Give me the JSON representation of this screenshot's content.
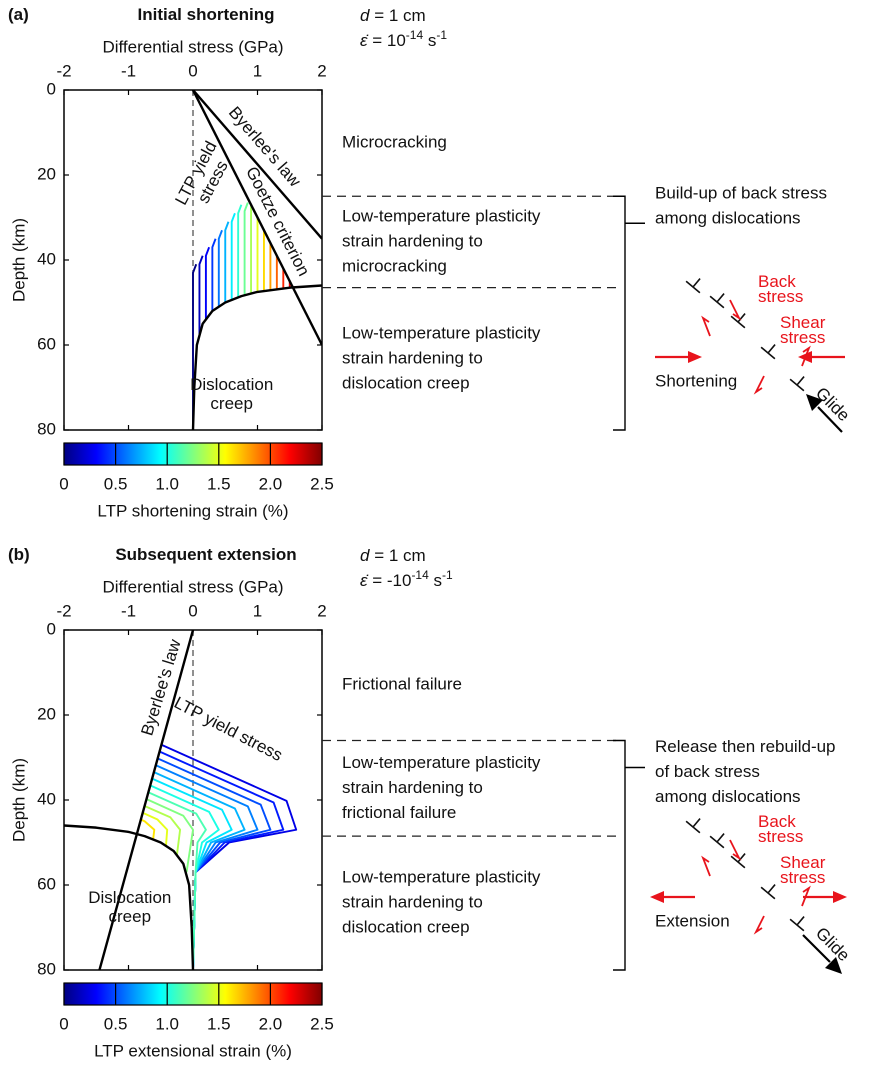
{
  "chart_data": [
    {
      "type": "line",
      "panel_label": "(a)",
      "title": "Initial shortening",
      "grain_size_symbol": "d",
      "grain_size_text": " = 1 cm",
      "strain_rate_symbol": "ε̇",
      "strain_rate_text": " = 10",
      "strain_rate_exponent": "-14",
      "strain_rate_unit": " s",
      "strain_rate_unit_exponent": "-1",
      "x_label": "Differential stress (GPa)",
      "y_label": "Depth (km)",
      "xlim": [
        -2,
        2
      ],
      "xticks": [
        -2,
        -1,
        0,
        1,
        2
      ],
      "ylim": [
        0,
        80
      ],
      "yticks": [
        0,
        20,
        40,
        60,
        80
      ],
      "y_inverted": true,
      "series": [
        {
          "label": [
            "Byerlee's law"
          ],
          "color": "#000000",
          "x": [
            0,
            2
          ],
          "y": [
            0,
            35
          ]
        },
        {
          "label": [
            "Goetze criterion"
          ],
          "color": "#000000",
          "x": [
            0,
            2
          ],
          "y": [
            0,
            60
          ]
        },
        {
          "label": [
            "Dislocation",
            "creep"
          ],
          "color": "#000000",
          "x": [
            0,
            0.02,
            0.06,
            0.15,
            0.3,
            0.5,
            0.75,
            1,
            1.5,
            2
          ],
          "y": [
            80,
            70,
            60,
            55,
            52,
            50,
            48.5,
            47.5,
            46.5,
            46
          ]
        }
      ],
      "annotation": [
        "LTP yield",
        "stress"
      ],
      "ltp_curves": [
        {
          "color": "#000080",
          "x": [
            0,
            0,
            0.05
          ],
          "y": [
            80,
            43,
            41
          ]
        },
        {
          "color": "#0000bd",
          "x": [
            0.1,
            0.1,
            0.15
          ],
          "y": [
            57.5,
            41,
            39
          ]
        },
        {
          "color": "#0000fa",
          "x": [
            0.2,
            0.2,
            0.25
          ],
          "y": [
            53.8,
            39,
            37
          ]
        },
        {
          "color": "#0038ff",
          "x": [
            0.3,
            0.3,
            0.35
          ],
          "y": [
            52,
            37,
            35
          ]
        },
        {
          "color": "#0075ff",
          "x": [
            0.4,
            0.4,
            0.45
          ],
          "y": [
            51,
            35,
            33
          ]
        },
        {
          "color": "#00b3ff",
          "x": [
            0.5,
            0.5,
            0.55
          ],
          "y": [
            50,
            33,
            31
          ]
        },
        {
          "color": "#00f0ff",
          "x": [
            0.6,
            0.6,
            0.65
          ],
          "y": [
            49.4,
            31,
            29
          ]
        },
        {
          "color": "#2effd1",
          "x": [
            0.7,
            0.7,
            0.75
          ],
          "y": [
            48.8,
            29,
            27
          ]
        },
        {
          "color": "#6bff94",
          "x": [
            0.8,
            0.8,
            0.85
          ],
          "y": [
            48.3,
            28.5,
            26.5
          ]
        },
        {
          "color": "#a8ff57",
          "x": [
            0.9,
            0.9
          ],
          "y": [
            47.9,
            27
          ]
        },
        {
          "color": "#e6ff1a",
          "x": [
            1.0,
            1.0
          ],
          "y": [
            47.5,
            30
          ]
        },
        {
          "color": "#ffdb00",
          "x": [
            1.1,
            1.1
          ],
          "y": [
            47.3,
            33
          ]
        },
        {
          "color": "#ff9e00",
          "x": [
            1.2,
            1.2
          ],
          "y": [
            47.1,
            36
          ]
        },
        {
          "color": "#ff6100",
          "x": [
            1.3,
            1.3
          ],
          "y": [
            46.9,
            39
          ]
        },
        {
          "color": "#ff2400",
          "x": [
            1.4,
            1.4
          ],
          "y": [
            46.7,
            42
          ]
        },
        {
          "color": "#e60000",
          "x": [
            1.5,
            1.5
          ],
          "y": [
            46.5,
            45
          ]
        }
      ],
      "colorbar": {
        "label": "LTP shortening strain (%)",
        "lim": [
          0,
          2.5
        ],
        "ticks": [
          0,
          0.5,
          {
            "value": 1,
            "label": "1.0"
          },
          1.5,
          {
            "value": 2,
            "label": "2.0"
          },
          2.5
        ],
        "colormap": [
          "#000080",
          "#0000ff",
          "#0080ff",
          "#00ffff",
          "#80ff80",
          "#ffff00",
          "#ff8000",
          "#ff0000",
          "#800000"
        ]
      },
      "zone_boundaries": [
        25,
        46.5
      ],
      "zones": [
        [
          "Microcracking"
        ],
        [
          "Low-temperature plasticity",
          "strain hardening to",
          "microcracking"
        ],
        [
          "Low-temperature plasticity",
          "strain hardening to",
          "dislocation creep"
        ]
      ],
      "bracket_text": [
        "Build-up of back stress",
        "among dislocations"
      ],
      "schematic": {
        "back_stress": [
          "Back",
          "stress"
        ],
        "shear_stress": [
          "Shear",
          "stress"
        ],
        "loading": "Shortening",
        "glide": "Glide"
      }
    },
    {
      "type": "line",
      "panel_label": "(b)",
      "title": "Subsequent extension",
      "grain_size_symbol": "d",
      "grain_size_text": " = 1 cm",
      "strain_rate_symbol": "ε̇",
      "strain_rate_text": " = -10",
      "strain_rate_exponent": "-14",
      "strain_rate_unit": " s",
      "strain_rate_unit_exponent": "-1",
      "x_label": "Differential stress (GPa)",
      "y_label": "Depth (km)",
      "xlim": [
        -2,
        2
      ],
      "xticks": [
        -2,
        -1,
        0,
        1,
        2
      ],
      "ylim": [
        0,
        80
      ],
      "yticks": [
        0,
        20,
        40,
        60,
        80
      ],
      "y_inverted": true,
      "series": [
        {
          "label": [
            "Byerlee's law"
          ],
          "color": "#000000",
          "x": [
            0,
            -1.45
          ],
          "y": [
            0,
            80
          ]
        },
        {
          "label": [
            "Dislocation",
            "creep"
          ],
          "color": "#000000",
          "x": [
            -2,
            -1.5,
            -1,
            -0.75,
            -0.5,
            -0.3,
            -0.15,
            -0.06,
            -0.02,
            0
          ],
          "y": [
            46,
            46.5,
            47.5,
            48.5,
            50,
            52,
            55,
            60,
            70,
            80
          ]
        }
      ],
      "annotation": [
        "LTP yield stress"
      ],
      "ltp_curves": [
        {
          "color": "#0000e6",
          "x": [
            -0.49,
            1.45,
            1.6,
            0.56,
            0.04,
            0
          ],
          "y": [
            27,
            40.2,
            47,
            50,
            57,
            80
          ]
        },
        {
          "color": "#001aff",
          "x": [
            -0.52,
            1.25,
            1.4,
            0.49,
            0.04,
            0
          ],
          "y": [
            28.6,
            40.6,
            47,
            50,
            57,
            80
          ]
        },
        {
          "color": "#004dff",
          "x": [
            -0.55,
            1.05,
            1.2,
            0.42,
            0.04,
            0
          ],
          "y": [
            30.2,
            41.1,
            47,
            50,
            57,
            80
          ]
        },
        {
          "color": "#0080ff",
          "x": [
            -0.58,
            0.85,
            1.0,
            0.35,
            0.04,
            0
          ],
          "y": [
            31.8,
            41.5,
            47,
            50,
            57,
            80
          ]
        },
        {
          "color": "#00b3ff",
          "x": [
            -0.61,
            0.65,
            0.8,
            0.28,
            0.04,
            0
          ],
          "y": [
            33.4,
            42,
            47,
            50,
            57,
            80
          ]
        },
        {
          "color": "#00e6ff",
          "x": [
            -0.63,
            0.45,
            0.6,
            0.21,
            0.04,
            0
          ],
          "y": [
            35,
            42.3,
            47,
            50,
            57,
            80
          ]
        },
        {
          "color": "#1affe6",
          "x": [
            -0.66,
            0.25,
            0.4,
            0.14,
            0.04,
            0
          ],
          "y": [
            36.6,
            42.8,
            47,
            50,
            57,
            80
          ]
        },
        {
          "color": "#4dffb3",
          "x": [
            -0.69,
            0.05,
            0.2,
            0.07,
            0.04,
            0
          ],
          "y": [
            38.2,
            43.2,
            47,
            50,
            57,
            80
          ]
        },
        {
          "color": "#80ff80",
          "x": [
            -0.72,
            -0.15,
            0,
            -0.1
          ],
          "y": [
            39.8,
            43.7,
            47,
            57
          ]
        },
        {
          "color": "#b3ff4d",
          "x": [
            -0.75,
            -0.35,
            -0.2,
            -0.25
          ],
          "y": [
            41.4,
            44.1,
            47,
            53
          ]
        },
        {
          "color": "#e6ff1a",
          "x": [
            -0.78,
            -0.55,
            -0.4,
            -0.42
          ],
          "y": [
            43,
            44.6,
            47,
            51
          ]
        },
        {
          "color": "#ffe600",
          "x": [
            -0.81,
            -0.75,
            -0.6,
            -0.62
          ],
          "y": [
            44.6,
            45,
            47,
            49.5
          ]
        }
      ],
      "colorbar": {
        "label": "LTP extensional strain (%)",
        "lim": [
          0,
          2.5
        ],
        "ticks": [
          0,
          0.5,
          {
            "value": 1,
            "label": "1.0"
          },
          1.5,
          {
            "value": 2,
            "label": "2.0"
          },
          2.5
        ],
        "colormap": [
          "#000080",
          "#0000ff",
          "#0080ff",
          "#00ffff",
          "#80ff80",
          "#ffff00",
          "#ff8000",
          "#ff0000",
          "#800000"
        ]
      },
      "zone_boundaries": [
        26,
        48.5
      ],
      "zones": [
        [
          "Frictional failure"
        ],
        [
          "Low-temperature plasticity",
          "strain hardening to",
          "frictional failure"
        ],
        [
          "Low-temperature plasticity",
          "strain hardening to",
          "dislocation creep"
        ]
      ],
      "bracket_text": [
        "Release then rebuild-up",
        "of back stress",
        "among dislocations"
      ],
      "schematic": {
        "back_stress": [
          "Back",
          "stress"
        ],
        "shear_stress": [
          "Shear",
          "stress"
        ],
        "loading": "Extension",
        "glide": "Glide"
      }
    }
  ]
}
